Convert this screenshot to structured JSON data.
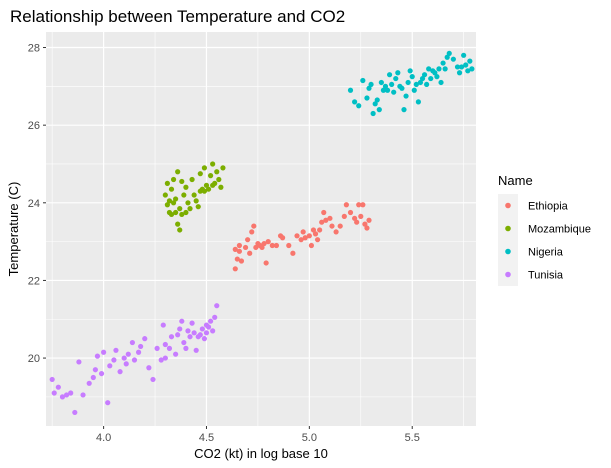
{
  "chart_data": {
    "type": "scatter",
    "title": "Relationship between Temperature and CO2",
    "xlabel": "CO2 (kt) in log base 10",
    "ylabel": "Temperature (C)",
    "xlim": [
      3.72,
      5.81
    ],
    "ylim": [
      18.25,
      28.4
    ],
    "x_ticks": [
      4.0,
      4.5,
      5.0,
      5.5
    ],
    "x_tick_labels": [
      "4.0",
      "4.5",
      "5.0",
      "5.5"
    ],
    "y_ticks": [
      20,
      22,
      24,
      26,
      28
    ],
    "y_tick_labels": [
      "20",
      "22",
      "24",
      "26",
      "28"
    ],
    "grid": true,
    "legend": {
      "title": "Name",
      "position": "right"
    },
    "series": [
      {
        "name": "Ethiopia",
        "color": "#F8766D",
        "points": [
          [
            4.64,
            22.3
          ],
          [
            4.65,
            22.55
          ],
          [
            4.64,
            22.8
          ],
          [
            4.66,
            22.75
          ],
          [
            4.66,
            22.9
          ],
          [
            4.67,
            22.5
          ],
          [
            4.69,
            22.85
          ],
          [
            4.7,
            23.05
          ],
          [
            4.71,
            22.7
          ],
          [
            4.72,
            23.25
          ],
          [
            4.73,
            23.4
          ],
          [
            4.74,
            22.85
          ],
          [
            4.75,
            22.95
          ],
          [
            4.76,
            22.9
          ],
          [
            4.77,
            22.85
          ],
          [
            4.78,
            22.95
          ],
          [
            4.79,
            22.45
          ],
          [
            4.8,
            23.0
          ],
          [
            4.82,
            22.9
          ],
          [
            4.84,
            22.9
          ],
          [
            4.86,
            23.15
          ],
          [
            4.9,
            22.9
          ],
          [
            4.92,
            22.7
          ],
          [
            4.94,
            23.15
          ],
          [
            4.96,
            23.05
          ],
          [
            4.98,
            23.1
          ],
          [
            5.0,
            23.15
          ],
          [
            5.01,
            22.9
          ],
          [
            5.02,
            23.3
          ],
          [
            5.03,
            23.2
          ],
          [
            5.04,
            23.05
          ],
          [
            5.05,
            23.3
          ],
          [
            5.06,
            23.5
          ],
          [
            5.07,
            23.75
          ],
          [
            5.08,
            23.55
          ],
          [
            5.1,
            23.6
          ],
          [
            5.11,
            23.4
          ],
          [
            5.13,
            23.25
          ],
          [
            5.15,
            23.4
          ],
          [
            5.17,
            23.65
          ],
          [
            5.18,
            23.95
          ],
          [
            5.2,
            23.75
          ],
          [
            5.22,
            23.6
          ],
          [
            5.23,
            23.5
          ],
          [
            5.24,
            23.95
          ],
          [
            5.26,
            23.95
          ],
          [
            5.27,
            23.45
          ],
          [
            5.28,
            23.35
          ],
          [
            5.29,
            23.55
          ],
          [
            5.25,
            23.65
          ],
          [
            4.87,
            23.1
          ],
          [
            4.97,
            23.25
          ]
        ]
      },
      {
        "name": "Mozambique",
        "color": "#7CAE00",
        "points": [
          [
            4.3,
            24.2
          ],
          [
            4.31,
            23.95
          ],
          [
            4.31,
            24.5
          ],
          [
            4.32,
            24.05
          ],
          [
            4.32,
            23.75
          ],
          [
            4.33,
            24.35
          ],
          [
            4.33,
            23.7
          ],
          [
            4.34,
            24.0
          ],
          [
            4.34,
            24.6
          ],
          [
            4.35,
            23.75
          ],
          [
            4.35,
            24.1
          ],
          [
            4.36,
            23.45
          ],
          [
            4.36,
            24.8
          ],
          [
            4.37,
            23.3
          ],
          [
            4.37,
            23.85
          ],
          [
            4.38,
            24.55
          ],
          [
            4.38,
            23.7
          ],
          [
            4.39,
            24.2
          ],
          [
            4.4,
            23.75
          ],
          [
            4.4,
            24.4
          ],
          [
            4.41,
            24.0
          ],
          [
            4.42,
            23.85
          ],
          [
            4.43,
            24.6
          ],
          [
            4.44,
            24.2
          ],
          [
            4.45,
            24.05
          ],
          [
            4.46,
            23.9
          ],
          [
            4.47,
            24.3
          ],
          [
            4.48,
            24.35
          ],
          [
            4.49,
            24.3
          ],
          [
            4.5,
            24.45
          ],
          [
            4.51,
            24.35
          ],
          [
            4.52,
            24.7
          ],
          [
            4.53,
            24.45
          ],
          [
            4.53,
            25.0
          ],
          [
            4.54,
            24.5
          ],
          [
            4.55,
            24.8
          ],
          [
            4.56,
            24.6
          ],
          [
            4.57,
            24.4
          ],
          [
            4.58,
            24.9
          ],
          [
            4.49,
            24.9
          ],
          [
            4.47,
            24.75
          ]
        ]
      },
      {
        "name": "Nigeria",
        "color": "#00BFC4",
        "points": [
          [
            5.2,
            26.9
          ],
          [
            5.22,
            26.6
          ],
          [
            5.24,
            26.5
          ],
          [
            5.26,
            27.15
          ],
          [
            5.28,
            26.7
          ],
          [
            5.29,
            26.95
          ],
          [
            5.3,
            27.05
          ],
          [
            5.31,
            26.3
          ],
          [
            5.32,
            26.55
          ],
          [
            5.33,
            26.65
          ],
          [
            5.34,
            26.4
          ],
          [
            5.35,
            27.1
          ],
          [
            5.36,
            26.9
          ],
          [
            5.37,
            27.0
          ],
          [
            5.38,
            26.9
          ],
          [
            5.39,
            27.3
          ],
          [
            5.4,
            27.05
          ],
          [
            5.41,
            26.85
          ],
          [
            5.42,
            27.2
          ],
          [
            5.43,
            27.35
          ],
          [
            5.44,
            27.0
          ],
          [
            5.45,
            26.95
          ],
          [
            5.46,
            26.4
          ],
          [
            5.47,
            26.75
          ],
          [
            5.48,
            27.1
          ],
          [
            5.49,
            27.4
          ],
          [
            5.5,
            27.25
          ],
          [
            5.51,
            26.9
          ],
          [
            5.52,
            27.05
          ],
          [
            5.53,
            26.6
          ],
          [
            5.54,
            27.1
          ],
          [
            5.55,
            27.2
          ],
          [
            5.56,
            27.3
          ],
          [
            5.57,
            27.05
          ],
          [
            5.58,
            27.45
          ],
          [
            5.59,
            27.2
          ],
          [
            5.6,
            27.4
          ],
          [
            5.61,
            27.35
          ],
          [
            5.62,
            27.25
          ],
          [
            5.63,
            27.45
          ],
          [
            5.64,
            27.1
          ],
          [
            5.65,
            27.6
          ],
          [
            5.66,
            27.45
          ],
          [
            5.67,
            27.75
          ],
          [
            5.68,
            27.85
          ],
          [
            5.7,
            27.7
          ],
          [
            5.72,
            27.5
          ],
          [
            5.73,
            27.35
          ],
          [
            5.74,
            27.5
          ],
          [
            5.75,
            27.8
          ],
          [
            5.76,
            27.55
          ],
          [
            5.77,
            27.4
          ],
          [
            5.78,
            27.65
          ],
          [
            5.79,
            27.45
          ]
        ]
      },
      {
        "name": "Tunisia",
        "color": "#C77CFF",
        "points": [
          [
            3.75,
            19.45
          ],
          [
            3.76,
            19.1
          ],
          [
            3.78,
            19.25
          ],
          [
            3.8,
            19.0
          ],
          [
            3.82,
            19.05
          ],
          [
            3.84,
            19.1
          ],
          [
            3.86,
            18.6
          ],
          [
            3.88,
            19.9
          ],
          [
            3.9,
            19.05
          ],
          [
            3.93,
            19.35
          ],
          [
            3.95,
            19.5
          ],
          [
            3.96,
            19.7
          ],
          [
            3.97,
            20.05
          ],
          [
            3.99,
            19.6
          ],
          [
            4.0,
            20.15
          ],
          [
            4.02,
            18.85
          ],
          [
            4.03,
            19.8
          ],
          [
            4.05,
            19.95
          ],
          [
            4.06,
            20.2
          ],
          [
            4.08,
            19.65
          ],
          [
            4.1,
            20.0
          ],
          [
            4.11,
            19.85
          ],
          [
            4.12,
            20.1
          ],
          [
            4.14,
            20.4
          ],
          [
            4.15,
            19.95
          ],
          [
            4.17,
            20.15
          ],
          [
            4.18,
            20.3
          ],
          [
            4.2,
            20.5
          ],
          [
            4.22,
            19.75
          ],
          [
            4.24,
            19.45
          ],
          [
            4.26,
            20.25
          ],
          [
            4.28,
            19.95
          ],
          [
            4.29,
            20.85
          ],
          [
            4.3,
            20.0
          ],
          [
            4.32,
            20.25
          ],
          [
            4.33,
            20.55
          ],
          [
            4.35,
            20.1
          ],
          [
            4.36,
            20.6
          ],
          [
            4.37,
            20.75
          ],
          [
            4.38,
            20.95
          ],
          [
            4.39,
            20.4
          ],
          [
            4.4,
            20.25
          ],
          [
            4.41,
            20.7
          ],
          [
            4.42,
            20.55
          ],
          [
            4.43,
            20.9
          ],
          [
            4.44,
            20.65
          ],
          [
            4.45,
            20.2
          ],
          [
            4.46,
            20.55
          ],
          [
            4.47,
            20.6
          ],
          [
            4.48,
            20.75
          ],
          [
            4.49,
            20.5
          ],
          [
            4.5,
            20.65
          ],
          [
            4.51,
            20.8
          ],
          [
            4.52,
            20.95
          ],
          [
            4.53,
            20.7
          ],
          [
            4.54,
            21.05
          ],
          [
            4.55,
            21.35
          ],
          [
            4.5,
            20.85
          ],
          [
            4.3,
            20.35
          ]
        ]
      }
    ]
  }
}
